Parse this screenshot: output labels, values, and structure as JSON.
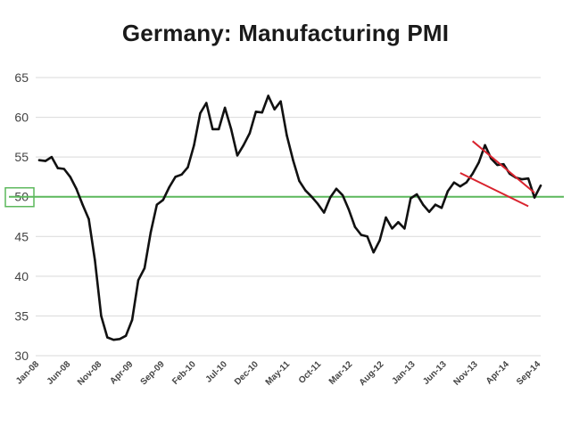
{
  "chart_data": {
    "type": "line",
    "title": "Germany: Manufacturing  PMI",
    "xlabel": "",
    "ylabel": "",
    "ylim": [
      30,
      65
    ],
    "yticks": [
      30,
      35,
      40,
      45,
      50,
      55,
      60,
      65
    ],
    "grid": true,
    "x_tick_labels": [
      "Jan-08",
      "Jun-08",
      "Nov-08",
      "Apr-09",
      "Sep-09",
      "Feb-10",
      "Jul-10",
      "Dec-10",
      "May-11",
      "Oct-11",
      "Mar-12",
      "Aug-12",
      "Jan-13",
      "Jun-13",
      "Nov-13",
      "Apr-14",
      "Sep-14"
    ],
    "highlighted_tick": 50,
    "reference_line": {
      "value": 50,
      "color": "#5cb85c"
    },
    "channel": {
      "color": "#d9232e",
      "upper": [
        [
          70,
          57.0
        ],
        [
          80,
          50.5
        ]
      ],
      "lower": [
        [
          68,
          53.0
        ],
        [
          79,
          48.8
        ]
      ]
    },
    "series": [
      {
        "name": "Germany Manufacturing PMI",
        "color": "#111111",
        "values": [
          54.6,
          54.5,
          55.0,
          53.6,
          53.5,
          52.5,
          51.0,
          49.0,
          47.2,
          42.0,
          35.0,
          32.3,
          32.0,
          32.1,
          32.5,
          34.5,
          39.5,
          41.0,
          45.5,
          49.0,
          49.6,
          51.2,
          52.5,
          52.8,
          53.7,
          56.5,
          60.5,
          61.8,
          58.5,
          58.5,
          61.2,
          58.5,
          55.2,
          56.5,
          58.0,
          60.7,
          60.6,
          62.7,
          61.0,
          62.0,
          57.7,
          54.6,
          52.0,
          50.8,
          50.0,
          49.1,
          48.0,
          49.9,
          51.0,
          50.2,
          48.4,
          46.2,
          45.2,
          45.0,
          43.0,
          44.5,
          47.4,
          46.0,
          46.8,
          46.0,
          49.8,
          50.3,
          49.0,
          48.1,
          49.0,
          48.6,
          50.7,
          51.8,
          51.3,
          51.8,
          52.9,
          54.3,
          56.5,
          54.8,
          54.0,
          54.1,
          52.9,
          52.4,
          52.2,
          52.3,
          49.9,
          51.4
        ]
      }
    ]
  }
}
